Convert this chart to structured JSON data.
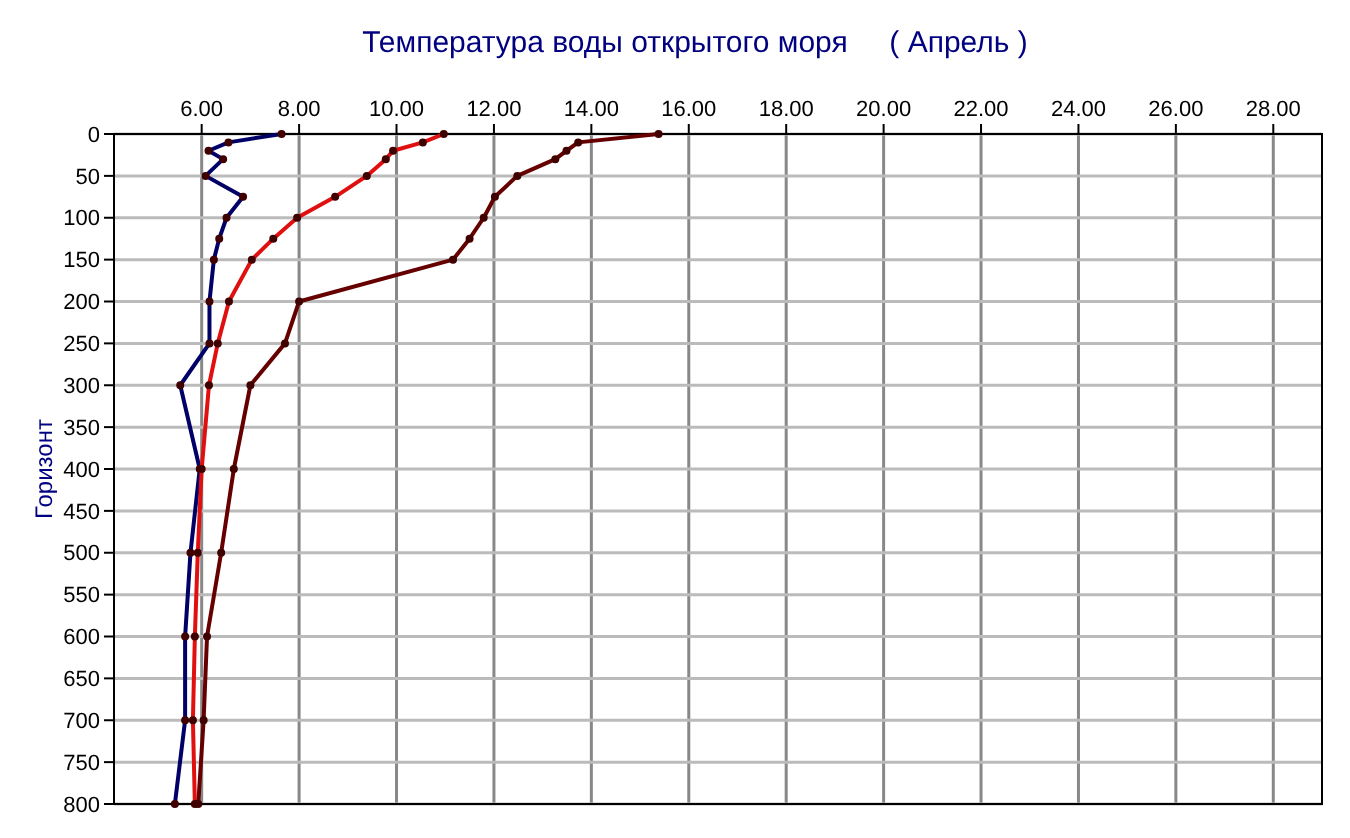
{
  "chart_data": {
    "type": "line",
    "title": "Температура воды открытого моря     ( Апрель )",
    "ylabel": "Горизонт",
    "xlim": [
      4.2,
      29.0
    ],
    "ylim": [
      800,
      0
    ],
    "xticks": [
      {
        "value": 6,
        "label": "6.00"
      },
      {
        "value": 8,
        "label": "8.00"
      },
      {
        "value": 10,
        "label": "10.00"
      },
      {
        "value": 12,
        "label": "12.00"
      },
      {
        "value": 14,
        "label": "14.00"
      },
      {
        "value": 16,
        "label": "16.00"
      },
      {
        "value": 18,
        "label": "18.00"
      },
      {
        "value": 20,
        "label": "20.00"
      },
      {
        "value": 22,
        "label": "22.00"
      },
      {
        "value": 24,
        "label": "24.00"
      },
      {
        "value": 26,
        "label": "26.00"
      },
      {
        "value": 28,
        "label": "28.00"
      }
    ],
    "yticks": [
      0,
      50,
      100,
      150,
      200,
      250,
      300,
      350,
      400,
      450,
      500,
      550,
      600,
      650,
      700,
      750,
      800
    ],
    "grid": true,
    "marker": "circle",
    "line_style": "solid",
    "series": [
      {
        "color": "#000066",
        "x": [
          7.64,
          6.55,
          6.14,
          6.44,
          6.08,
          6.85,
          6.51,
          6.36,
          6.25,
          6.16,
          6.16,
          5.56,
          5.96,
          5.77,
          5.66,
          5.66,
          5.45
        ],
        "values": [
          0,
          10,
          20,
          30,
          50,
          75,
          100,
          125,
          150,
          200,
          250,
          300,
          400,
          500,
          600,
          700,
          800
        ]
      },
      {
        "color": "#e01010",
        "x": [
          10.97,
          10.54,
          9.93,
          9.78,
          9.39,
          8.74,
          7.96,
          7.47,
          7.03,
          6.56,
          6.33,
          6.15,
          6.0,
          5.92,
          5.86,
          5.82,
          5.86
        ],
        "values": [
          0,
          10,
          20,
          30,
          50,
          75,
          100,
          125,
          150,
          200,
          250,
          300,
          400,
          500,
          600,
          700,
          800
        ]
      },
      {
        "color": "#660000",
        "x": [
          15.38,
          13.73,
          13.49,
          13.26,
          12.48,
          12.02,
          11.79,
          11.5,
          11.16,
          8.0,
          7.71,
          7.0,
          6.66,
          6.4,
          6.11,
          6.04,
          5.93
        ],
        "values": [
          0,
          10,
          20,
          30,
          50,
          75,
          100,
          125,
          150,
          200,
          250,
          300,
          400,
          500,
          600,
          700,
          800
        ]
      }
    ]
  }
}
